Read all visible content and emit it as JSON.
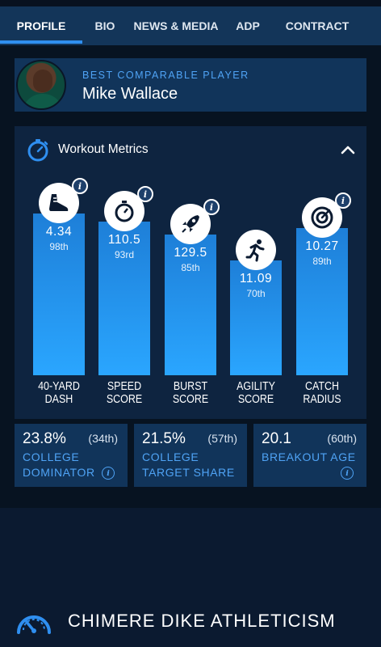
{
  "tabs": [
    {
      "label": "PROFILE",
      "active": true
    },
    {
      "label": "BIO",
      "active": false
    },
    {
      "label": "NEWS & MEDIA",
      "active": false
    },
    {
      "label": "ADP",
      "active": false
    },
    {
      "label": "CONTRACT",
      "active": false
    }
  ],
  "comparable": {
    "kicker": "BEST COMPARABLE PLAYER",
    "name": "Mike Wallace"
  },
  "workout": {
    "title": "Workout Metrics",
    "icon": "stopwatch-icon",
    "metrics": [
      {
        "value": "4.34",
        "percentile": "98th",
        "percentile_value": 98,
        "label_line1": "40-YARD",
        "label_line2": "DASH",
        "icon": "sneaker-icon"
      },
      {
        "value": "110.5",
        "percentile": "93rd",
        "percentile_value": 93,
        "label_line1": "SPEED",
        "label_line2": "SCORE",
        "icon": "stopwatch-icon"
      },
      {
        "value": "129.5",
        "percentile": "85th",
        "percentile_value": 85,
        "label_line1": "BURST",
        "label_line2": "SCORE",
        "icon": "rocket-icon"
      },
      {
        "value": "11.09",
        "percentile": "70th",
        "percentile_value": 70,
        "label_line1": "AGILITY",
        "label_line2": "SCORE",
        "icon": "runner-icon"
      },
      {
        "value": "10.27",
        "percentile": "89th",
        "percentile_value": 89,
        "label_line1": "CATCH",
        "label_line2": "RADIUS",
        "icon": "target-icon"
      }
    ]
  },
  "stats": [
    {
      "value": "23.8%",
      "rank": "(34th)",
      "label_line1": "COLLEGE",
      "label_line2": "DOMINATOR"
    },
    {
      "value": "21.5%",
      "rank": "(57th)",
      "label_line1": "COLLEGE",
      "label_line2": "TARGET SHARE"
    },
    {
      "value": "20.1",
      "rank": "(60th)",
      "label_line1": "BREAKOUT AGE",
      "label_line2": ""
    }
  ],
  "athleticism": {
    "title": "CHIMERE DIKE ATHLETICISM",
    "icon": "speedometer-icon"
  },
  "colors": {
    "accent": "#2f8ff0",
    "label_blue": "#4fa3f5",
    "card": "#11345a",
    "panel": "#0e2440",
    "background": "#0b1a30"
  },
  "info_glyph": "i"
}
